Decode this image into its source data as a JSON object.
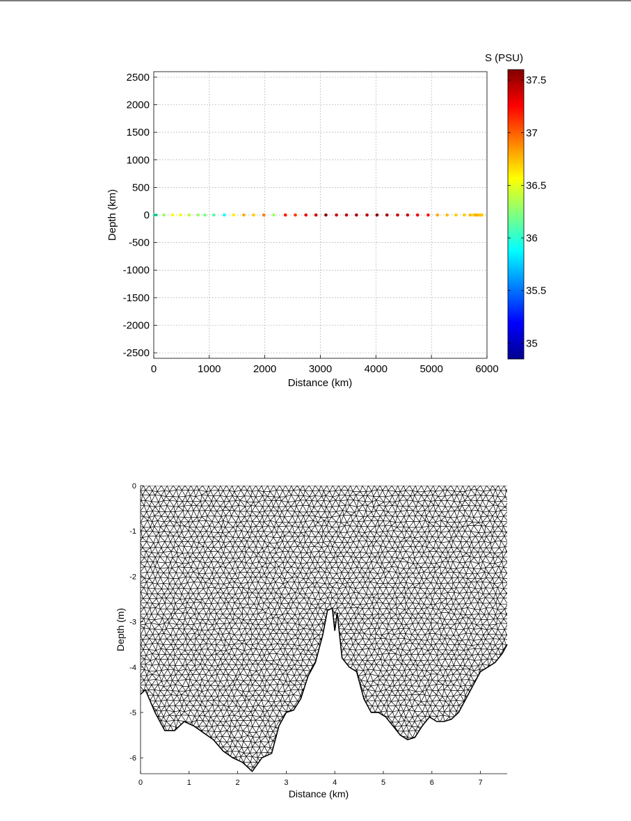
{
  "chart_data": [
    {
      "type": "scatter",
      "xlabel": "Distance (km)",
      "ylabel": "Depth (km)",
      "xlim": [
        0,
        6000
      ],
      "ylim": [
        -2600,
        2600
      ],
      "xticks": [
        "0",
        "1000",
        "2000",
        "3000",
        "4000",
        "5000",
        "6000"
      ],
      "yticks": [
        "2500",
        "2000",
        "1500",
        "1000",
        "500",
        "0",
        "-500",
        "-1000",
        "-1500",
        "-2000",
        "-2500"
      ],
      "xtick_values": [
        0,
        1000,
        2000,
        3000,
        4000,
        5000,
        6000
      ],
      "ytick_values": [
        2500,
        2000,
        1500,
        1000,
        500,
        0,
        -500,
        -1000,
        -1500,
        -2000,
        -2500
      ],
      "grid": true,
      "colorbar": {
        "label": "S (PSU)",
        "range": [
          34.85,
          37.6
        ],
        "ticks": [
          "37.5",
          "37",
          "36.5",
          "36",
          "35.5",
          "35"
        ],
        "tick_values": [
          37.5,
          37.0,
          36.5,
          36.0,
          35.5,
          35.0
        ],
        "colormap": "jet"
      },
      "points": {
        "x": [
          10,
          50,
          180,
          340,
          480,
          640,
          800,
          920,
          1080,
          1270,
          1440,
          1620,
          1800,
          1980,
          2160,
          2370,
          2550,
          2740,
          2920,
          3100,
          3290,
          3470,
          3650,
          3840,
          4020,
          4200,
          4390,
          4570,
          4750,
          4940,
          5110,
          5280,
          5440,
          5590,
          5700,
          5760,
          5800,
          5840,
          5870,
          5890,
          5910
        ],
        "y": [
          0,
          0,
          0,
          0,
          0,
          0,
          0,
          0,
          0,
          0,
          0,
          0,
          0,
          0,
          0,
          0,
          0,
          0,
          0,
          0,
          0,
          0,
          0,
          0,
          0,
          0,
          0,
          0,
          0,
          0,
          0,
          0,
          0,
          0,
          0,
          0,
          0,
          0,
          0,
          0,
          0
        ],
        "s": [
          36.0,
          36.1,
          36.3,
          36.55,
          36.55,
          36.4,
          36.3,
          36.2,
          36.1,
          35.9,
          36.6,
          36.8,
          36.7,
          36.9,
          36.3,
          37.2,
          37.1,
          37.3,
          37.4,
          37.6,
          37.4,
          37.45,
          37.5,
          37.45,
          37.6,
          37.5,
          37.4,
          37.4,
          37.3,
          37.2,
          36.8,
          36.75,
          36.7,
          36.7,
          36.75,
          36.7,
          36.8,
          36.75,
          36.7,
          36.75,
          36.7
        ]
      }
    },
    {
      "type": "mesh",
      "xlabel": "Distance (km)",
      "ylabel": "Depth (m)",
      "xlim": [
        0,
        7.55
      ],
      "ylim": [
        -6.35,
        0
      ],
      "xticks": [
        "0",
        "1",
        "2",
        "3",
        "4",
        "5",
        "6",
        "7"
      ],
      "yticks": [
        "0",
        "-1",
        "-2",
        "-3",
        "-4",
        "-5",
        "-6"
      ],
      "xtick_values": [
        0,
        1,
        2,
        3,
        4,
        5,
        6,
        7
      ],
      "ytick_values": [
        0,
        -1,
        -2,
        -3,
        -4,
        -5,
        -6
      ],
      "mesh_color": "#000000",
      "bottom_profile": {
        "x": [
          0,
          0.1,
          0.3,
          0.5,
          0.7,
          0.9,
          1.1,
          1.3,
          1.5,
          1.7,
          1.9,
          2.1,
          2.3,
          2.5,
          2.7,
          2.85,
          3.0,
          3.15,
          3.3,
          3.45,
          3.6,
          3.75,
          3.85,
          3.95,
          4.0,
          4.05,
          4.15,
          4.3,
          4.45,
          4.6,
          4.75,
          4.9,
          5.05,
          5.2,
          5.35,
          5.5,
          5.65,
          5.8,
          5.95,
          6.1,
          6.25,
          6.4,
          6.55,
          6.7,
          6.85,
          7.0,
          7.15,
          7.3,
          7.45,
          7.55
        ],
        "y": [
          -4.6,
          -4.5,
          -5.0,
          -5.4,
          -5.4,
          -5.2,
          -5.3,
          -5.45,
          -5.6,
          -5.85,
          -6.0,
          -6.1,
          -6.3,
          -6.0,
          -5.9,
          -5.3,
          -5.0,
          -4.95,
          -4.7,
          -4.2,
          -3.9,
          -3.3,
          -2.75,
          -2.7,
          -3.2,
          -2.8,
          -3.8,
          -4.0,
          -4.1,
          -4.7,
          -5.0,
          -5.0,
          -5.1,
          -5.3,
          -5.5,
          -5.6,
          -5.55,
          -5.3,
          -5.1,
          -5.2,
          -5.2,
          -5.15,
          -5.0,
          -4.7,
          -4.4,
          -4.1,
          -4.0,
          -3.9,
          -3.7,
          -3.5
        ]
      }
    }
  ]
}
